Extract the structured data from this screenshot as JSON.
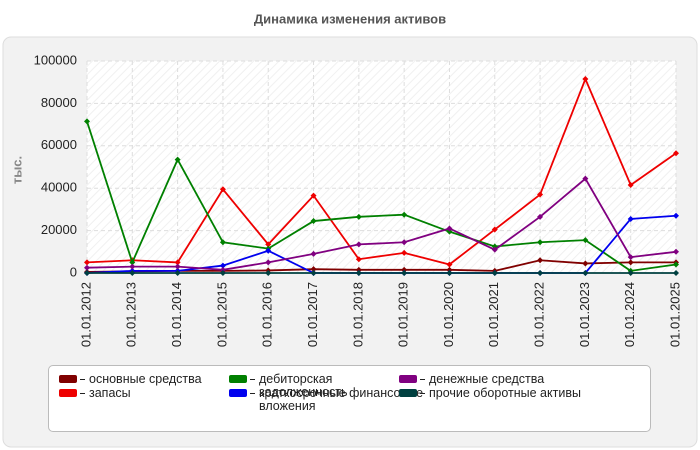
{
  "chart_data": {
    "type": "line",
    "title": "Динамика изменения активов",
    "y_label": "тыс.",
    "categories": [
      "01.01.2012",
      "01.01.2013",
      "01.01.2014",
      "01.01.2015",
      "01.01.2016",
      "01.01.2017",
      "01.01.2018",
      "01.01.2019",
      "01.01.2020",
      "01.01.2021",
      "01.01.2022",
      "01.01.2023",
      "01.01.2024",
      "01.01.2025"
    ],
    "series": [
      {
        "name": "основные средства",
        "color": "#800000",
        "values": [
          500,
          800,
          1000,
          1000,
          1200,
          1800,
          1500,
          1500,
          1500,
          1000,
          6000,
          4500,
          5000,
          5000
        ]
      },
      {
        "name": "запасы",
        "color": "#ee0000",
        "values": [
          5000,
          6000,
          5000,
          39500,
          13500,
          36500,
          6500,
          9500,
          4000,
          20500,
          37000,
          91500,
          41500,
          56500
        ]
      },
      {
        "name": "дебиторская задолженность",
        "color": "#008000",
        "values": [
          71500,
          5000,
          53500,
          14500,
          11500,
          24500,
          26500,
          27500,
          19500,
          12500,
          14500,
          15500,
          1000,
          4000
        ]
      },
      {
        "name": "краткосрочные финансовые вложения",
        "color": "#0000ee",
        "values": [
          0,
          1000,
          1000,
          3500,
          10500,
          0,
          0,
          0,
          0,
          0,
          0,
          0,
          25500,
          27000
        ]
      },
      {
        "name": "денежные средства",
        "color": "#800080",
        "values": [
          2500,
          3000,
          3000,
          1500,
          5000,
          9000,
          13500,
          14500,
          21000,
          11000,
          26500,
          44500,
          7500,
          10000
        ]
      },
      {
        "name": "прочие оборотные активы",
        "color": "#004040",
        "values": [
          0,
          0,
          0,
          0,
          0,
          0,
          0,
          0,
          0,
          0,
          0,
          0,
          0,
          0
        ]
      }
    ],
    "ylim": [
      0,
      100000
    ],
    "yticks": [
      0,
      20000,
      40000,
      60000,
      80000,
      100000
    ],
    "grid": true
  }
}
